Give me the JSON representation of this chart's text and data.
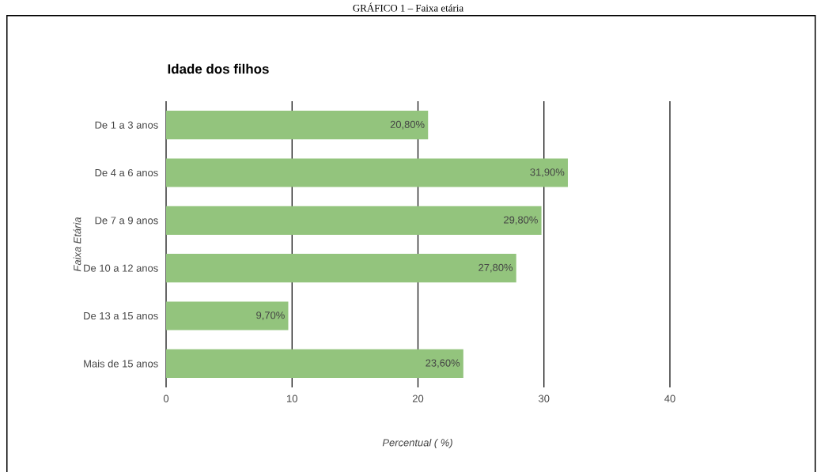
{
  "chart_data": {
    "type": "bar",
    "orientation": "horizontal",
    "title": "GRÁFICO 1 – Faixa etária",
    "subtitle": "Idade dos filhos",
    "xlabel": "Percentual ( %)",
    "ylabel": "Faixa Etária",
    "categories": [
      "De 1 a 3 anos",
      "De 4 a 6 anos",
      "De 7 a 9 anos",
      "De 10 a 12 anos",
      "De 13 a 15 anos",
      "Mais de 15 anos"
    ],
    "values": [
      20.8,
      31.9,
      29.8,
      27.8,
      9.7,
      23.6
    ],
    "value_labels": [
      "20,80%",
      "31,90%",
      "29,80%",
      "27,80%",
      "9,70%",
      "23,60%"
    ],
    "color": "#93c47d",
    "xlim": [
      0,
      40
    ],
    "xticks": [
      0,
      10,
      20,
      30,
      40
    ],
    "grid": "x"
  }
}
